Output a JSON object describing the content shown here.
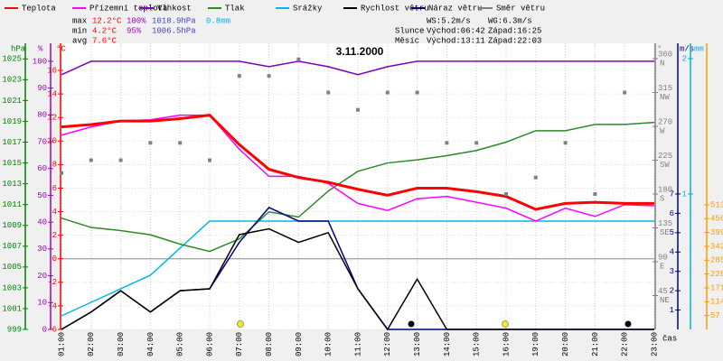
{
  "chart_data": {
    "type": "line",
    "title": "3.11.2000",
    "x_label": "čas",
    "categories": [
      "01:00",
      "02:00",
      "03:00",
      "04:00",
      "05:00",
      "06:00",
      "07:00",
      "08:00",
      "09:00",
      "10:00",
      "11:00",
      "12:00",
      "13:00",
      "14:00",
      "15:00",
      "16:00",
      "19:00",
      "20:00",
      "21:00",
      "22:00",
      "23:00"
    ],
    "axes": {
      "pres": {
        "label": "hPa",
        "color": "#008000",
        "ylim": [
          999,
          1026.5
        ],
        "yticks": [
          999,
          1001,
          1003,
          1005,
          1007,
          1009,
          1011,
          1013,
          1015,
          1017,
          1019,
          1021,
          1023,
          1025
        ]
      },
      "hum": {
        "label": "%",
        "color": "#a000c0",
        "ylim": [
          0,
          106.7
        ],
        "yticks": [
          0,
          10,
          20,
          30,
          40,
          50,
          60,
          70,
          80,
          90,
          100
        ]
      },
      "temp": {
        "label": "°C",
        "color": "#ff0000",
        "ylim": [
          -6,
          18.3
        ],
        "yticks": [
          -6,
          -4,
          -2,
          0,
          2,
          4,
          6,
          8,
          10,
          12,
          14,
          16
        ]
      },
      "dir": {
        "label": "°",
        "color": "#808080",
        "ylim": [
          0,
          380.4
        ],
        "yticks": [
          {
            "value": 45,
            "label": "45",
            "dir": "NE"
          },
          {
            "value": 90,
            "label": "90",
            "dir": "E"
          },
          {
            "value": 135,
            "label": "135",
            "dir": "SE"
          },
          {
            "value": 180,
            "label": "180",
            "dir": "S"
          },
          {
            "value": 225,
            "label": "225",
            "dir": "SW"
          },
          {
            "value": 270,
            "label": "270",
            "dir": "W"
          },
          {
            "value": 315,
            "label": "315",
            "dir": "NW"
          },
          {
            "value": 360,
            "label": "360",
            "dir": "N"
          }
        ]
      },
      "wind": {
        "label": "m/s",
        "color": "#000080",
        "ylim": [
          0,
          14.79
        ],
        "yticks": [
          1,
          2,
          3,
          4,
          5,
          6,
          7
        ]
      },
      "rain": {
        "label": "mm",
        "color": "#00b0e0",
        "ylim": [
          0,
          2.113
        ],
        "yticks": [
          1,
          2
        ]
      },
      "rad": {
        "color": "#ff9900",
        "ylim": [
          0,
          1178
        ],
        "yticks": [
          57,
          114,
          171,
          228,
          285,
          342,
          399,
          456,
          513
        ]
      }
    },
    "series": [
      {
        "name": "Teplota",
        "color": "#ff0000",
        "axis": "temp",
        "values": [
          11.2,
          11.4,
          11.7,
          11.7,
          11.9,
          12.2,
          9.7,
          7.6,
          6.9,
          6.5,
          5.9,
          5.4,
          6.0,
          6.0,
          5.7,
          5.3,
          4.2,
          4.7,
          4.8,
          4.7,
          4.7
        ]
      },
      {
        "name": "Přízemní teplota",
        "color": "#ff00ff",
        "axis": "temp",
        "values": [
          10.5,
          11.2,
          11.7,
          11.8,
          12.2,
          12.2,
          9.3,
          7.0,
          7.0,
          6.4,
          4.7,
          4.1,
          5.1,
          5.3,
          4.8,
          4.3,
          3.2,
          4.3,
          3.6,
          4.6,
          4.5
        ]
      },
      {
        "name": "Vlhkost",
        "color": "#8000c0",
        "axis": "hum",
        "values": [
          95,
          100,
          100,
          100,
          100,
          100,
          100,
          98,
          100,
          98,
          95,
          98,
          100,
          100,
          100,
          100,
          100,
          100,
          100,
          100,
          100
        ]
      },
      {
        "name": "Tlak",
        "color": "#2a8a2a",
        "axis": "pres",
        "values": [
          1009.7,
          1008.8,
          1008.5,
          1008.1,
          1007.2,
          1006.5,
          1007.7,
          1010.3,
          1009.8,
          1012.3,
          1014.2,
          1015.0,
          1015.3,
          1015.7,
          1016.2,
          1017.0,
          1018.1,
          1018.1,
          1018.7,
          1018.7,
          1018.9
        ]
      },
      {
        "name": "Srážky",
        "color": "#00b8e8",
        "axis": "rain",
        "values": [
          0.1,
          0.2,
          0.3,
          0.4,
          0.6,
          0.8,
          0.8,
          0.8,
          0.8,
          0.8,
          0.8,
          0.8,
          0.8,
          0.8,
          0.8,
          0.8,
          0.8,
          0.8,
          0.8,
          0.8,
          0.8
        ]
      },
      {
        "name": "Rychlost větru",
        "color": "#000000",
        "axis": "wind",
        "values": [
          0,
          0.9,
          2.0,
          0.9,
          2.0,
          2.1,
          4.9,
          5.2,
          4.5,
          5.0,
          2.1,
          0,
          2.6,
          0,
          0,
          0,
          0,
          0,
          0,
          0,
          0
        ]
      },
      {
        "name": "Náraz větru",
        "color": "#000080",
        "axis": "wind",
        "values": [
          0,
          0.9,
          2.0,
          0.9,
          2.0,
          2.1,
          4.5,
          6.3,
          5.6,
          5.6,
          2.1,
          0,
          0,
          0,
          0,
          0,
          0,
          0,
          0,
          0,
          0
        ]
      },
      {
        "name": "Směr větru",
        "color": "#808080",
        "axis": "dir",
        "type": "scatter",
        "values": [
          208,
          225,
          225,
          248,
          248,
          225,
          337,
          337,
          359,
          315,
          292,
          315,
          315,
          248,
          248,
          180,
          202,
          248,
          180,
          315,
          null
        ]
      }
    ],
    "stats": [
      {
        "label": "max",
        "values": [
          "12.2°C",
          "100%",
          "1018.9hPa",
          "0.8mm"
        ]
      },
      {
        "label": "min",
        "values": [
          "4.2°C",
          "95%",
          "1006.5hPa"
        ]
      },
      {
        "label": "avg",
        "values": [
          "7.6°C"
        ]
      }
    ],
    "info": [
      [
        "WS:5.2m/s",
        "WG:6.3m/s"
      ],
      [
        "Slunce",
        "Východ:06:42",
        "Západ:16:25"
      ],
      [
        "Měsíc",
        "Východ:13:11",
        "Západ:22:03"
      ]
    ]
  }
}
